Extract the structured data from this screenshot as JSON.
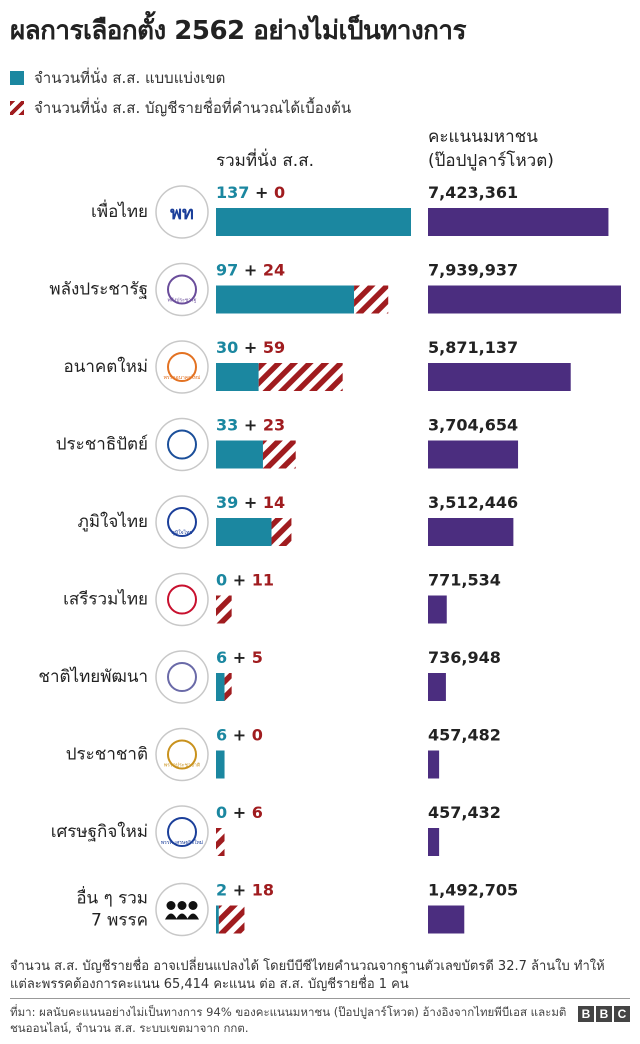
{
  "title": "ผลการเลือกตั้ง 2562 อย่างไม่เป็นทางการ",
  "legend": {
    "constituency": "จำนวนที่นั่ง ส.ส. แบบแบ่งเขต",
    "party_list": "จำนวนที่นั่ง ส.ส. บัญชีรายชื่อที่คำนวณได้เบื้องต้น"
  },
  "column_headers": {
    "seats": "รวมที่นั่ง ส.ส.",
    "votes_line1": "คะแนนมหาชน",
    "votes_line2": "(ป๊อปปูลาร์โหวต)"
  },
  "colors": {
    "constituency": "#1b87a0",
    "party_list": "#a01c1f",
    "popular_vote": "#4b2d7f"
  },
  "chart_data": {
    "type": "bar",
    "title": "ผลการเลือกตั้ง 2562 อย่างไม่เป็นทางการ",
    "categories": [
      "เพื่อไทย",
      "พลังประชารัฐ",
      "อนาคตใหม่",
      "ประชาธิปัตย์",
      "ภูมิใจไทย",
      "เสรีรวมไทย",
      "ชาติไทยพัฒนา",
      "ประชาชาติ",
      "เศรษฐกิจใหม่",
      "อื่น ๆ รวม 7 พรรค"
    ],
    "series": [
      {
        "name": "จำนวนที่นั่ง ส.ส. แบบแบ่งเขต",
        "values": [
          137,
          97,
          30,
          33,
          39,
          0,
          6,
          6,
          0,
          2
        ]
      },
      {
        "name": "จำนวนที่นั่ง ส.ส. บัญชีรายชื่อที่คำนวณได้เบื้องต้น",
        "values": [
          0,
          24,
          59,
          23,
          14,
          11,
          5,
          0,
          6,
          18
        ]
      },
      {
        "name": "คะแนนมหาชน (ป๊อปปูลาร์โหวต)",
        "values": [
          7423361,
          7939937,
          5871137,
          3704654,
          3512446,
          771534,
          736948,
          457482,
          457432,
          1492705
        ]
      }
    ],
    "vote_labels": [
      "7,423,361",
      "7,939,937",
      "5,871,137",
      "3,704,654",
      "3,512,446",
      "771,534",
      "736,948",
      "457,482",
      "457,432",
      "1,492,705"
    ],
    "logos": [
      "พท",
      "พลังประชารัฐ",
      "พรรคอนาคตใหม่",
      "",
      "ภูมิใจไทย",
      "",
      "",
      "พรรคประชาชาติ",
      "พรรค เศรษฐกิจใหม่",
      ""
    ],
    "legend_position": "top-left",
    "grid": false
  },
  "footnote": "จำนวน ส.ส. บัญชีรายชื่อ อาจเปลี่ยนแปลงได้ โดยบีบีซีไทยคำนวณจากฐานตัวเลขบัตรดี 32.7 ล้านใบ ทำให้แต่ละพรรคต้องการคะแนน 65,414 คะแนน ต่อ ส.ส. บัญชีรายชื่อ 1 คน",
  "source": "ที่มา: ผลนับคะแนนอย่างไม่เป็นทางการ 94% ของคะแนนมหาชน (ป๊อปปูลาร์โหวต) อ้างอิงจากไทยพีบีเอส และมติชนออนไลน์, จำนวน ส.ส. ระบบเขตมาจาก กกต.",
  "brand": [
    "B",
    "B",
    "C"
  ]
}
